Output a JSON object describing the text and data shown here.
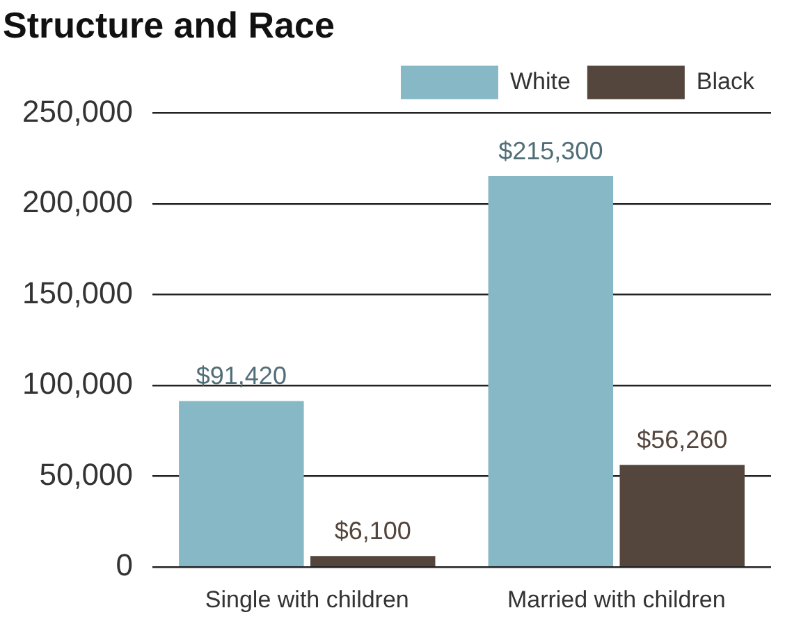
{
  "chart_data": {
    "type": "bar",
    "title": "Structure and Race",
    "categories": [
      "Single with children",
      "Married with children"
    ],
    "series": [
      {
        "name": "White",
        "color": "#86b8c6",
        "values": [
          91420,
          215300
        ],
        "value_labels": [
          "$91,420",
          "$215,300"
        ]
      },
      {
        "name": "Black",
        "color": "#54463c",
        "values": [
          6100,
          56260
        ],
        "value_labels": [
          "$6,100",
          "$56,260"
        ]
      }
    ],
    "ylim": [
      0,
      250000
    ],
    "yticks": [
      0,
      {
        "value": 50000,
        "label": "50,000"
      },
      {
        "value": 100000,
        "label": "100,000"
      },
      {
        "value": 150000,
        "label": "150,000"
      },
      {
        "value": 200000,
        "label": "200,000"
      },
      {
        "value": 250000,
        "label": "250,000"
      }
    ],
    "grid": "y",
    "legend": "top right"
  }
}
